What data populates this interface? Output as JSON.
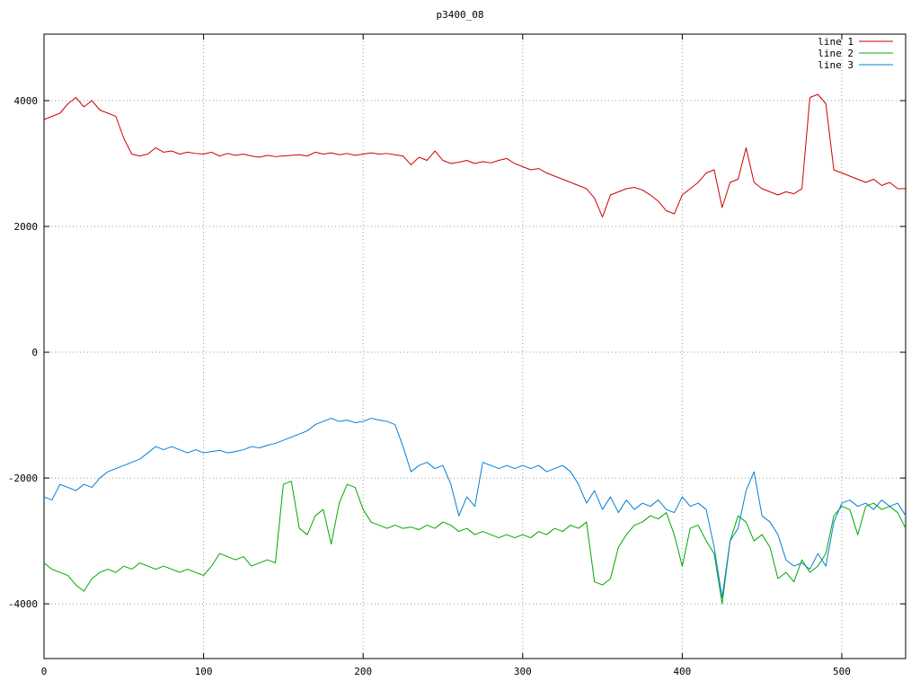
{
  "title": "p3400_08",
  "chart_data": {
    "type": "line",
    "title": "p3400_08",
    "xlabel": "",
    "ylabel": "",
    "xlim": [
      0,
      540
    ],
    "ylim": [
      -4870,
      5057
    ],
    "x_ticks": [
      0,
      100,
      200,
      300,
      400,
      500
    ],
    "y_ticks": [
      -4000,
      -2000,
      0,
      2000,
      4000
    ],
    "grid": "dotted",
    "grid_color": "#999999",
    "border_color": "#000000",
    "text_color": "#000000",
    "legend_position": "top-right",
    "x_start": 0,
    "x_step": 5,
    "series": [
      {
        "name": "line 1",
        "color": "#cc0000",
        "values": [
          3700,
          3750,
          3800,
          3950,
          4050,
          3900,
          4000,
          3850,
          3800,
          3750,
          3400,
          3150,
          3120,
          3150,
          3250,
          3180,
          3200,
          3150,
          3180,
          3160,
          3150,
          3180,
          3120,
          3160,
          3130,
          3150,
          3120,
          3100,
          3130,
          3110,
          3120,
          3130,
          3140,
          3120,
          3180,
          3150,
          3170,
          3140,
          3160,
          3130,
          3150,
          3170,
          3150,
          3160,
          3140,
          3120,
          2980,
          3100,
          3050,
          3200,
          3050,
          3000,
          3020,
          3050,
          3000,
          3030,
          3010,
          3050,
          3080,
          3000,
          2950,
          2900,
          2920,
          2850,
          2800,
          2750,
          2700,
          2650,
          2600,
          2450,
          2150,
          2500,
          2550,
          2600,
          2620,
          2580,
          2500,
          2400,
          2250,
          2200,
          2500,
          2600,
          2700,
          2850,
          2900,
          2300,
          2700,
          2750,
          3250,
          2700,
          2600,
          2550,
          2500,
          2550,
          2520,
          2600,
          4050,
          4100,
          3950,
          2900,
          2850,
          2800,
          2750,
          2700,
          2750,
          2650,
          2700,
          2600,
          2600
        ]
      },
      {
        "name": "line 2",
        "color": "#00a800",
        "values": [
          -3350,
          -3450,
          -3500,
          -3550,
          -3700,
          -3800,
          -3600,
          -3500,
          -3450,
          -3500,
          -3400,
          -3450,
          -3350,
          -3400,
          -3450,
          -3400,
          -3450,
          -3500,
          -3450,
          -3500,
          -3550,
          -3400,
          -3200,
          -3250,
          -3300,
          -3250,
          -3400,
          -3350,
          -3300,
          -3350,
          -2100,
          -2050,
          -2800,
          -2900,
          -2600,
          -2500,
          -3050,
          -2400,
          -2100,
          -2150,
          -2500,
          -2700,
          -2750,
          -2800,
          -2750,
          -2800,
          -2780,
          -2820,
          -2750,
          -2800,
          -2700,
          -2750,
          -2850,
          -2800,
          -2900,
          -2850,
          -2900,
          -2950,
          -2900,
          -2950,
          -2900,
          -2950,
          -2850,
          -2900,
          -2800,
          -2850,
          -2750,
          -2800,
          -2700,
          -3650,
          -3700,
          -3600,
          -3100,
          -2900,
          -2750,
          -2700,
          -2600,
          -2650,
          -2550,
          -2900,
          -3400,
          -2800,
          -2750,
          -3000,
          -3200,
          -4000,
          -3000,
          -2600,
          -2700,
          -3000,
          -2900,
          -3100,
          -3600,
          -3500,
          -3650,
          -3300,
          -3500,
          -3400,
          -3200,
          -2600,
          -2450,
          -2500,
          -2900,
          -2450,
          -2400,
          -2500,
          -2450,
          -2550,
          -2800
        ]
      },
      {
        "name": "line 3",
        "color": "#0080d4",
        "values": [
          -2300,
          -2350,
          -2100,
          -2150,
          -2200,
          -2100,
          -2150,
          -2000,
          -1900,
          -1850,
          -1800,
          -1750,
          -1700,
          -1600,
          -1500,
          -1550,
          -1500,
          -1550,
          -1600,
          -1550,
          -1600,
          -1580,
          -1560,
          -1600,
          -1580,
          -1550,
          -1500,
          -1520,
          -1480,
          -1450,
          -1400,
          -1350,
          -1300,
          -1250,
          -1150,
          -1100,
          -1050,
          -1100,
          -1080,
          -1120,
          -1100,
          -1050,
          -1080,
          -1100,
          -1150,
          -1500,
          -1900,
          -1800,
          -1750,
          -1850,
          -1800,
          -2100,
          -2600,
          -2300,
          -2450,
          -1750,
          -1800,
          -1850,
          -1800,
          -1850,
          -1800,
          -1850,
          -1800,
          -1900,
          -1850,
          -1800,
          -1900,
          -2100,
          -2400,
          -2200,
          -2500,
          -2300,
          -2550,
          -2350,
          -2500,
          -2400,
          -2450,
          -2350,
          -2500,
          -2550,
          -2300,
          -2450,
          -2400,
          -2500,
          -3100,
          -3900,
          -3000,
          -2800,
          -2200,
          -1900,
          -2600,
          -2700,
          -2900,
          -3300,
          -3400,
          -3350,
          -3450,
          -3200,
          -3400,
          -2700,
          -2400,
          -2350,
          -2450,
          -2400,
          -2500,
          -2350,
          -2450,
          -2400,
          -2600
        ]
      }
    ]
  }
}
